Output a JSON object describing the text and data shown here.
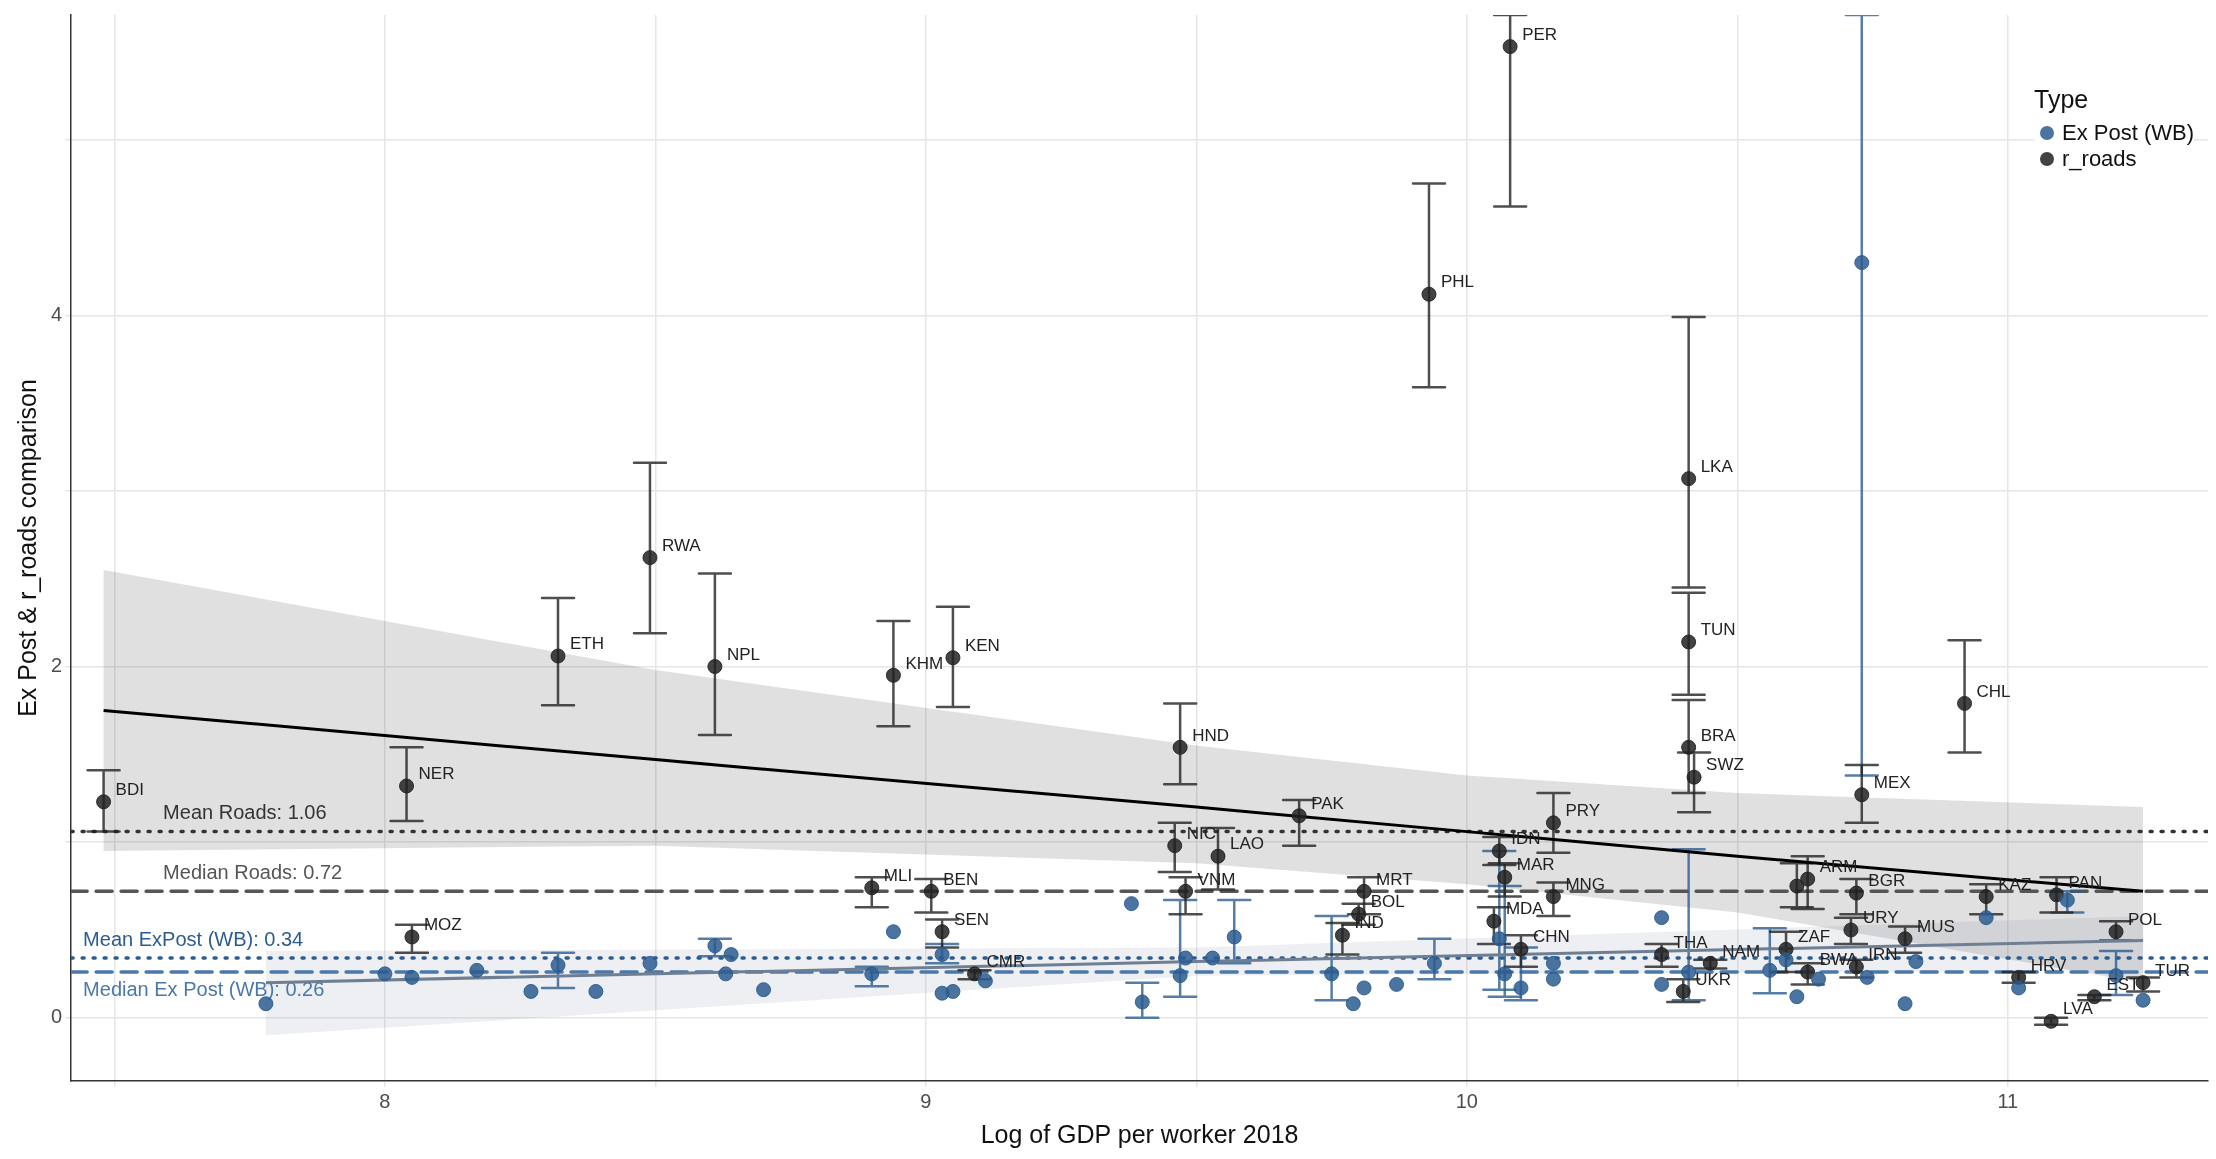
{
  "chart_data": {
    "type": "scatter",
    "xlabel": "Log of GDP per worker 2018",
    "ylabel": "Ex Post & r_roads comparison",
    "legend_title": "Type",
    "legend": "top right",
    "grid": true,
    "marker": "circle",
    "xlim": [
      7.42,
      11.37
    ],
    "xticks": [
      {
        "value": 7.5,
        "label": null
      },
      8,
      {
        "value": 8.5,
        "label": null
      },
      9,
      {
        "value": 9.5,
        "label": null
      },
      10,
      {
        "value": 10.5,
        "label": null
      },
      11
    ],
    "ylim": [
      -0.36,
      5.71
    ],
    "yticks": [
      0,
      {
        "value": 1,
        "label": null
      },
      2,
      {
        "value": 3,
        "label": null
      },
      4,
      {
        "value": 5,
        "label": null
      }
    ],
    "series": [
      {
        "name": "Ex Post (WB)",
        "color": "#2b5c8f",
        "x": [
          7.78,
          8.0,
          8.05,
          8.17,
          8.27,
          8.32,
          8.39,
          8.49,
          8.61,
          8.63,
          8.64,
          8.7,
          8.9,
          8.94,
          9.03,
          9.03,
          9.05,
          9.11,
          9.38,
          9.4,
          9.47,
          9.48,
          9.57,
          9.53,
          9.81,
          9.79,
          9.75,
          9.87,
          9.94,
          10.06,
          10.07,
          10.1,
          10.16,
          10.16,
          10.36,
          10.36,
          10.41,
          10.56,
          10.59,
          10.61,
          10.65,
          10.73,
          10.74,
          10.81,
          10.83,
          10.96,
          11.02,
          11.11,
          11.2,
          11.25
        ],
        "values": [
          0.08,
          0.25,
          0.23,
          0.27,
          0.15,
          0.3,
          0.15,
          0.31,
          0.41,
          0.25,
          0.36,
          0.16,
          0.25,
          0.49,
          0.36,
          0.14,
          0.15,
          0.21,
          0.65,
          0.09,
          0.24,
          0.34,
          0.46,
          0.34,
          0.17,
          0.08,
          0.25,
          0.19,
          0.31,
          0.45,
          0.25,
          0.17,
          0.31,
          0.22,
          0.57,
          0.19,
          0.26,
          0.27,
          0.33,
          0.12,
          0.22,
          4.3,
          0.23,
          0.08,
          0.32,
          0.57,
          0.17,
          0.67,
          0.24,
          0.1
        ],
        "errors": [
          null,
          null,
          null,
          null,
          null,
          [
            0.17,
            0.37
          ],
          null,
          null,
          [
            0.35,
            0.45
          ],
          null,
          null,
          null,
          [
            0.18,
            0.29
          ],
          null,
          [
            0.31,
            0.42
          ],
          null,
          null,
          null,
          null,
          [
            0.0,
            0.2
          ],
          [
            0.12,
            0.67
          ],
          null,
          [
            0.31,
            0.67
          ],
          null,
          null,
          null,
          [
            0.1,
            0.58
          ],
          null,
          [
            0.22,
            0.45
          ],
          [
            0.16,
            0.95
          ],
          [
            0.12,
            0.75
          ],
          [
            0.1,
            0.4
          ],
          null,
          null,
          null,
          null,
          [
            0.1,
            0.96
          ],
          [
            0.14,
            0.51
          ],
          null,
          null,
          null,
          [
            1.38,
            5.71
          ],
          null,
          null,
          null,
          null,
          null,
          [
            0.6,
            0.72
          ],
          [
            0.13,
            0.38
          ],
          null
        ]
      },
      {
        "name": "r_roads",
        "color": "#222222",
        "x": [
          7.48,
          8.04,
          8.05,
          8.32,
          8.49,
          8.61,
          8.94,
          9.05,
          8.9,
          9.01,
          9.03,
          9.09,
          9.47,
          9.46,
          9.54,
          9.48,
          9.69,
          9.81,
          9.8,
          9.77,
          10.05,
          10.06,
          10.07,
          10.1,
          10.16,
          10.16,
          9.93,
          10.08,
          10.41,
          10.41,
          10.41,
          10.42,
          10.36,
          10.4,
          10.45,
          10.59,
          10.61,
          10.63,
          10.72,
          10.63,
          10.72,
          10.71,
          10.81,
          10.73,
          10.92,
          10.96,
          11.09,
          11.02,
          11.08,
          11.16,
          11.2,
          11.25
        ],
        "values": [
          1.23,
          1.32,
          0.46,
          2.06,
          2.62,
          2.0,
          1.95,
          2.05,
          0.74,
          0.72,
          0.49,
          0.25,
          1.54,
          0.98,
          0.92,
          0.72,
          1.15,
          0.72,
          0.59,
          0.47,
          0.55,
          0.95,
          0.8,
          0.39,
          0.69,
          1.11,
          4.12,
          5.53,
          3.07,
          2.14,
          1.54,
          1.37,
          0.36,
          0.15,
          0.31,
          0.39,
          0.75,
          0.79,
          0.71,
          0.26,
          0.29,
          0.5,
          0.45,
          1.27,
          1.79,
          0.69,
          0.7,
          0.23,
          -0.02,
          0.12,
          0.49,
          0.2
        ],
        "errors": [
          [
            1.06,
            1.41
          ],
          [
            1.12,
            1.54
          ],
          [
            0.37,
            0.53
          ],
          [
            1.78,
            2.39
          ],
          [
            2.19,
            3.16
          ],
          [
            1.61,
            2.53
          ],
          [
            1.66,
            2.26
          ],
          [
            1.77,
            2.34
          ],
          [
            0.63,
            0.8
          ],
          [
            0.6,
            0.79
          ],
          [
            0.4,
            0.56
          ],
          [
            0.22,
            0.27
          ],
          [
            1.33,
            1.79
          ],
          [
            0.83,
            1.11
          ],
          [
            0.73,
            1.08
          ],
          [
            0.59,
            0.8
          ],
          [
            0.98,
            1.24
          ],
          [
            0.59,
            0.8
          ],
          [
            0.53,
            0.65
          ],
          [
            0.36,
            0.54
          ],
          [
            0.42,
            0.63
          ],
          [
            0.87,
            1.03
          ],
          [
            0.69,
            0.88
          ],
          [
            0.29,
            0.47
          ],
          [
            0.58,
            0.77
          ],
          [
            0.94,
            1.28
          ],
          [
            3.59,
            4.75
          ],
          [
            4.62,
            5.71
          ],
          [
            2.45,
            3.99
          ],
          [
            1.84,
            2.42
          ],
          [
            1.28,
            1.81
          ],
          [
            1.17,
            1.51
          ],
          [
            0.29,
            0.42
          ],
          [
            0.09,
            0.22
          ],
          [
            0.28,
            0.33
          ],
          [
            0.26,
            0.49
          ],
          [
            0.63,
            0.88
          ],
          [
            0.62,
            0.92
          ],
          [
            0.59,
            0.79
          ],
          [
            0.19,
            0.31
          ],
          [
            0.23,
            0.33
          ],
          [
            0.42,
            0.57
          ],
          [
            0.37,
            0.52
          ],
          [
            1.11,
            1.44
          ],
          [
            1.51,
            2.15
          ],
          [
            0.59,
            0.76
          ],
          [
            0.6,
            0.8
          ],
          [
            0.2,
            0.26
          ],
          [
            -0.04,
            0.0
          ],
          [
            0.1,
            0.13
          ],
          [
            0.44,
            0.55
          ],
          [
            0.15,
            0.23
          ]
        ]
      },
      {
        "type": "line",
        "marker": "none",
        "color": "#000000",
        "x": [
          7.48,
          8.5,
          9.5,
          10.0,
          10.5,
          11.25
        ],
        "values": [
          1.75,
          1.47,
          1.2,
          1.06,
          0.92,
          0.72
        ],
        "lower": [
          0.95,
          0.98,
          0.88,
          0.76,
          0.6,
          0.2
        ],
        "upper": [
          2.55,
          1.98,
          1.55,
          1.38,
          1.28,
          1.2
        ]
      },
      {
        "type": "line",
        "marker": "none",
        "color": "#6e7f94",
        "x": [
          7.78,
          9.5,
          11.25
        ],
        "values": [
          0.2,
          0.32,
          0.44
        ],
        "lower": [
          -0.1,
          0.24,
          0.27
        ],
        "upper": [
          0.38,
          0.4,
          0.58
        ]
      }
    ],
    "ref_lines": [
      {
        "axis": "y",
        "value": 1.06,
        "label": "Mean Roads: 1.06",
        "color": "#333333",
        "line_style": "dotted"
      },
      {
        "axis": "y",
        "value": 0.72,
        "label": "Median Roads: 0.72",
        "color": "#555555",
        "line_style": "dashed"
      },
      {
        "axis": "y",
        "value": 0.34,
        "label": "Mean ExPost (WB): 0.34",
        "color": "#2b5c8f",
        "line_style": "dotted"
      },
      {
        "axis": "y",
        "value": 0.26,
        "label": "Median Ex Post (WB): 0.26",
        "color": "#4a78aa",
        "line_style": "dashed"
      }
    ],
    "annotations": [
      {
        "text": "BDI",
        "x": 7.48,
        "y": 1.23
      },
      {
        "text": "NER",
        "x": 8.04,
        "y": 1.32
      },
      {
        "text": "MOZ",
        "x": 8.05,
        "y": 0.46
      },
      {
        "text": "ETH",
        "x": 8.32,
        "y": 2.06
      },
      {
        "text": "RWA",
        "x": 8.49,
        "y": 2.62
      },
      {
        "text": "NPL",
        "x": 8.61,
        "y": 2.0
      },
      {
        "text": "KHM",
        "x": 8.94,
        "y": 1.95
      },
      {
        "text": "KEN",
        "x": 9.05,
        "y": 2.05
      },
      {
        "text": "MLI",
        "x": 8.9,
        "y": 0.74
      },
      {
        "text": "BEN",
        "x": 9.01,
        "y": 0.72
      },
      {
        "text": "SEN",
        "x": 9.03,
        "y": 0.49
      },
      {
        "text": "CMR",
        "x": 9.09,
        "y": 0.25
      },
      {
        "text": "HND",
        "x": 9.47,
        "y": 1.54
      },
      {
        "text": "NIC",
        "x": 9.46,
        "y": 0.98
      },
      {
        "text": "LAO",
        "x": 9.54,
        "y": 0.92
      },
      {
        "text": "VNM",
        "x": 9.48,
        "y": 0.72
      },
      {
        "text": "PAK",
        "x": 9.69,
        "y": 1.15
      },
      {
        "text": "MRT",
        "x": 9.81,
        "y": 0.72
      },
      {
        "text": "BOL",
        "x": 9.8,
        "y": 0.59
      },
      {
        "text": "IND",
        "x": 9.77,
        "y": 0.47
      },
      {
        "text": "MDA",
        "x": 10.05,
        "y": 0.55
      },
      {
        "text": "IDN",
        "x": 10.06,
        "y": 0.95
      },
      {
        "text": "MAR",
        "x": 10.07,
        "y": 0.8
      },
      {
        "text": "CHN",
        "x": 10.1,
        "y": 0.39
      },
      {
        "text": "MNG",
        "x": 10.16,
        "y": 0.69
      },
      {
        "text": "PRY",
        "x": 10.16,
        "y": 1.11
      },
      {
        "text": "PHL",
        "x": 9.93,
        "y": 4.12
      },
      {
        "text": "PER",
        "x": 10.08,
        "y": 5.53
      },
      {
        "text": "LKA",
        "x": 10.41,
        "y": 3.07
      },
      {
        "text": "TUN",
        "x": 10.41,
        "y": 2.14
      },
      {
        "text": "BRA",
        "x": 10.41,
        "y": 1.54
      },
      {
        "text": "SWZ",
        "x": 10.42,
        "y": 1.37
      },
      {
        "text": "THA",
        "x": 10.36,
        "y": 0.36
      },
      {
        "text": "UKR",
        "x": 10.4,
        "y": 0.15
      },
      {
        "text": "NAM",
        "x": 10.45,
        "y": 0.31
      },
      {
        "text": "ZAF",
        "x": 10.59,
        "y": 0.39
      },
      {
        "text": "ARM",
        "x": 10.63,
        "y": 0.79
      },
      {
        "text": "BGR",
        "x": 10.72,
        "y": 0.71
      },
      {
        "text": "BWA",
        "x": 10.63,
        "y": 0.26
      },
      {
        "text": "IRN",
        "x": 10.72,
        "y": 0.29
      },
      {
        "text": "URY",
        "x": 10.71,
        "y": 0.5
      },
      {
        "text": "MUS",
        "x": 10.81,
        "y": 0.45
      },
      {
        "text": "MEX",
        "x": 10.73,
        "y": 1.27
      },
      {
        "text": "CHL",
        "x": 10.92,
        "y": 1.79
      },
      {
        "text": "KAZ",
        "x": 10.96,
        "y": 0.69
      },
      {
        "text": "PAN",
        "x": 11.09,
        "y": 0.7
      },
      {
        "text": "HRV",
        "x": 11.02,
        "y": 0.23
      },
      {
        "text": "LVA",
        "x": 11.08,
        "y": -0.02
      },
      {
        "text": "EST",
        "x": 11.16,
        "y": 0.12
      },
      {
        "text": "POL",
        "x": 11.2,
        "y": 0.49
      },
      {
        "text": "TUR",
        "x": 11.25,
        "y": 0.2
      }
    ]
  }
}
